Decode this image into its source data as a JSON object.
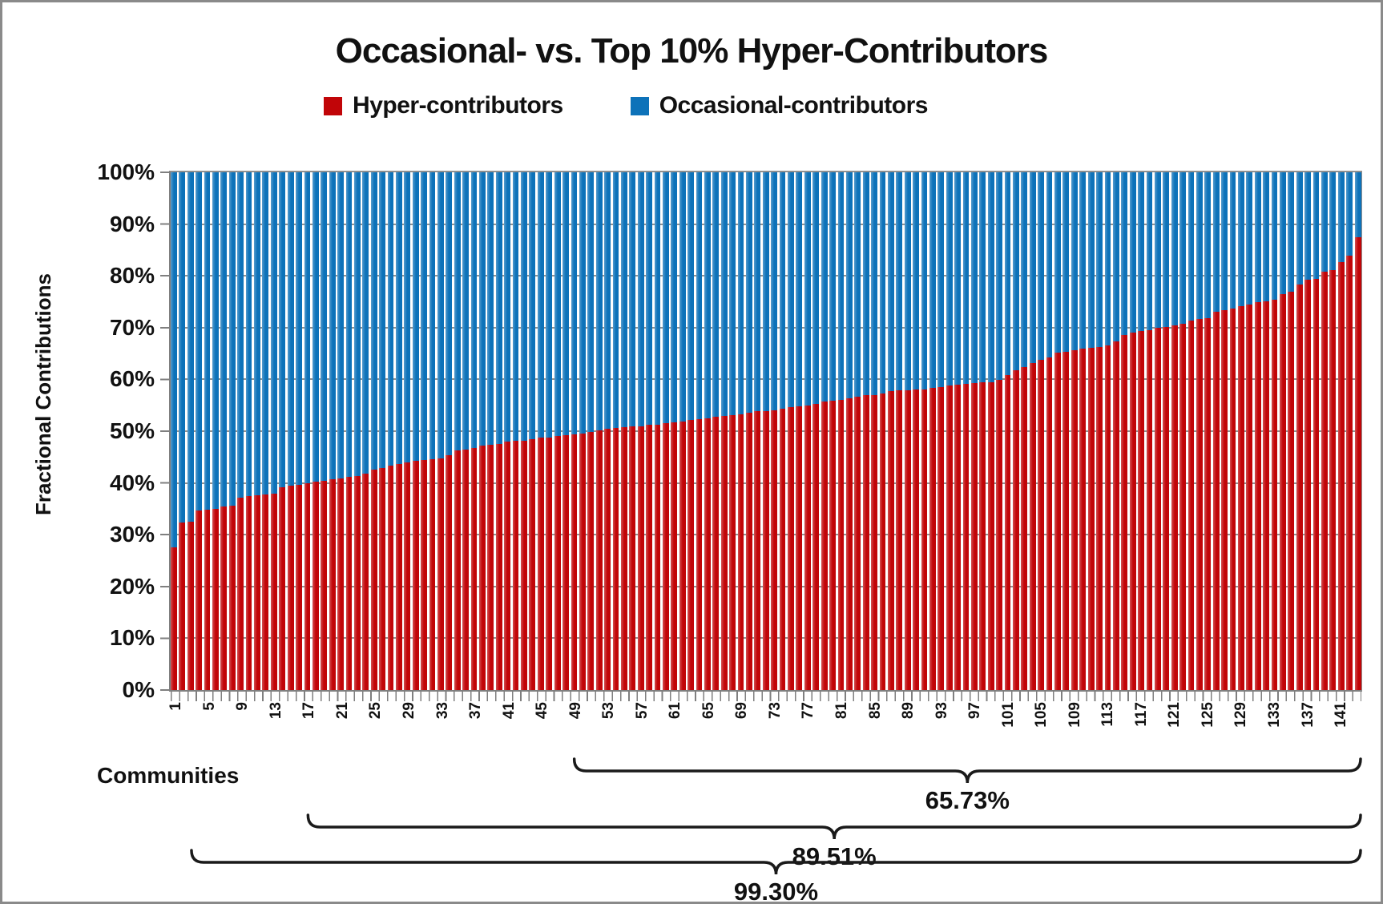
{
  "title": "Occasional- vs. Top 10% Hyper-Contributors",
  "legend": {
    "items": [
      {
        "label": "Hyper-contributors",
        "color": "#c10508"
      },
      {
        "label": "Occasional-contributors",
        "color": "#0d72b9"
      }
    ]
  },
  "y_axis": {
    "title": "Fractional Contributions",
    "tick_labels": [
      "100%",
      "90%",
      "80%",
      "70%",
      "60%",
      "50%",
      "40%",
      "30%",
      "20%",
      "10%",
      "0%"
    ]
  },
  "x_axis": {
    "title": "Communities",
    "tick_labels": [
      1,
      5,
      9,
      13,
      17,
      21,
      25,
      29,
      33,
      37,
      41,
      45,
      49,
      53,
      57,
      61,
      65,
      69,
      73,
      77,
      81,
      85,
      89,
      93,
      97,
      101,
      105,
      109,
      113,
      117,
      121,
      125,
      129,
      133,
      137,
      141
    ]
  },
  "chart_data": {
    "type": "bar",
    "stacked": true,
    "stack_total_percent": 100,
    "title": "Occasional- vs. Top 10% Hyper-Contributors",
    "xlabel": "Communities",
    "ylabel": "Fractional Contributions",
    "ylim": [
      0,
      100
    ],
    "grid": true,
    "legend_position": "top",
    "num_communities": 143,
    "series": [
      {
        "name": "Hyper-contributors",
        "color": "#c10508",
        "unit": "percent",
        "values": [
          27.5,
          32.3,
          32.5,
          34.6,
          34.8,
          35.0,
          35.5,
          35.6,
          37.2,
          37.4,
          37.6,
          37.8,
          38.0,
          39.2,
          39.4,
          39.6,
          40.0,
          40.2,
          40.4,
          40.7,
          40.9,
          41.1,
          41.4,
          41.8,
          42.5,
          42.9,
          43.3,
          43.7,
          44.0,
          44.2,
          44.4,
          44.6,
          44.8,
          45.4,
          46.3,
          46.5,
          46.7,
          47.2,
          47.4,
          47.6,
          48.0,
          48.1,
          48.2,
          48.5,
          48.7,
          48.8,
          49.0,
          49.2,
          49.4,
          49.6,
          49.8,
          50.1,
          50.4,
          50.6,
          50.8,
          50.9,
          51.0,
          51.2,
          51.3,
          51.5,
          51.7,
          51.9,
          52.2,
          52.3,
          52.5,
          52.8,
          52.9,
          53.1,
          53.3,
          53.5,
          53.8,
          53.9,
          54.1,
          54.4,
          54.6,
          54.8,
          55.0,
          55.2,
          55.7,
          55.9,
          56.1,
          56.4,
          56.6,
          56.9,
          57.0,
          57.2,
          57.7,
          57.9,
          57.9,
          58.0,
          58.1,
          58.3,
          58.5,
          58.8,
          59.0,
          59.1,
          59.3,
          59.4,
          59.5,
          59.9,
          60.8,
          61.8,
          62.4,
          63.2,
          63.8,
          64.2,
          65.2,
          65.4,
          65.6,
          66.0,
          66.1,
          66.3,
          66.6,
          67.3,
          68.6,
          69.0,
          69.3,
          69.5,
          69.9,
          70.1,
          70.5,
          70.7,
          71.3,
          71.6,
          71.9,
          73.1,
          73.4,
          73.7,
          74.2,
          74.5,
          74.9,
          75.1,
          75.4,
          76.4,
          76.9,
          78.3,
          79.2,
          79.4,
          80.8,
          81.1,
          82.7,
          83.9,
          87.4
        ]
      },
      {
        "name": "Occasional-contributors",
        "color": "#0d72b9",
        "unit": "percent",
        "derived": true,
        "values_rule": "100 minus Hyper-contributors value (100% stacked column)"
      }
    ],
    "bracket_annotations": [
      {
        "label": "65.73%",
        "from_community": 49,
        "to_community": 143
      },
      {
        "label": "89.51%",
        "from_community": 17,
        "to_community": 143
      },
      {
        "label": "99.30%",
        "from_community": 3,
        "to_community": 143
      }
    ]
  },
  "colors": {
    "hyper_red": "#c10508",
    "occasional_blue": "#0d72b9",
    "gridline_gray": "#8f8f8f",
    "axis_gray": "#7f7f7f",
    "text_black": "#111111"
  }
}
